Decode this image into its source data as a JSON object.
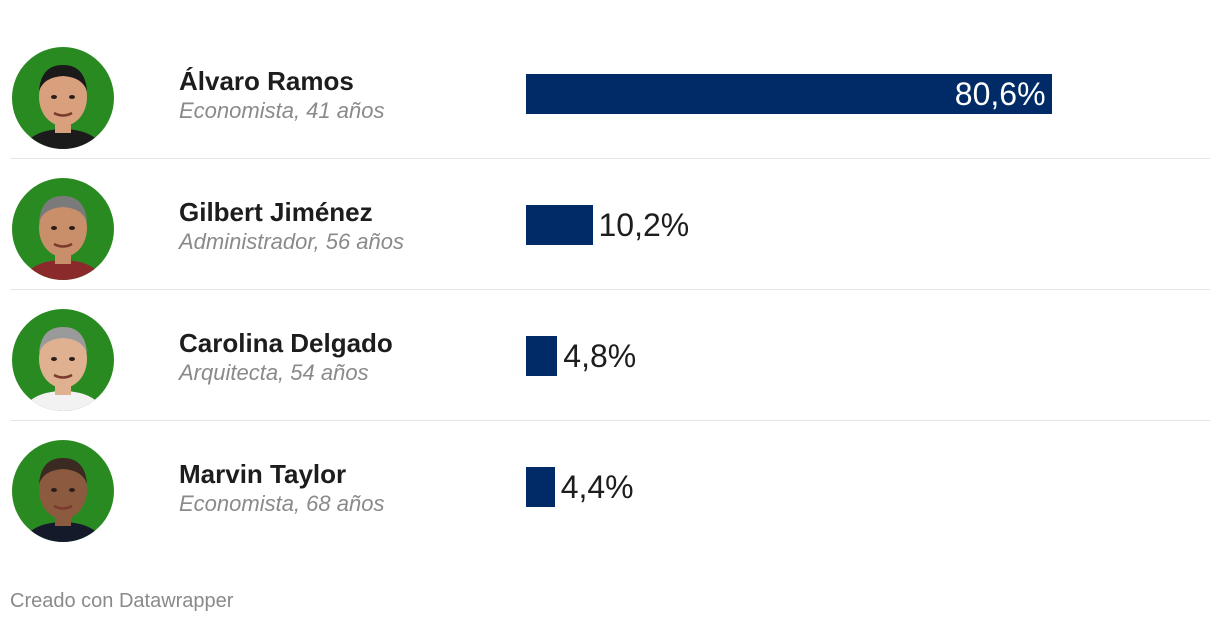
{
  "colors": {
    "bar": "#002b67",
    "avatar_background": "#2a8a22"
  },
  "chart_data": {
    "type": "bar",
    "orientation": "horizontal",
    "xlim": [
      0,
      100
    ],
    "categories": [
      "Álvaro Ramos",
      "Gilbert Jiménez",
      "Carolina Delgado",
      "Marvin Taylor"
    ],
    "values": [
      80.6,
      10.2,
      4.8,
      4.4
    ],
    "value_labels": [
      "80,6%",
      "10,2%",
      "4,8%",
      "4,4%"
    ],
    "descriptions": [
      "Economista, 41 años",
      "Administrador, 56 años",
      "Arquitecta, 54 años",
      "Economista, 68 años"
    ],
    "grid": false
  },
  "footer": "Creado con Datawrapper"
}
